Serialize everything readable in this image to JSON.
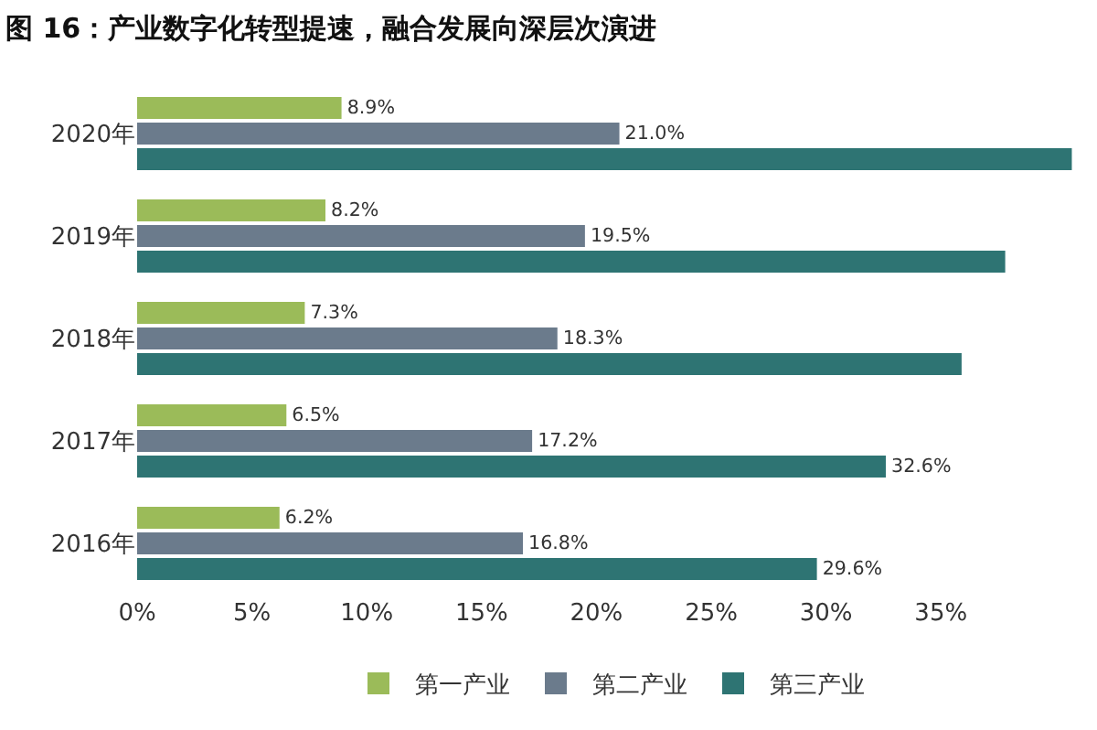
{
  "chart_data": {
    "type": "bar",
    "orientation": "horizontal",
    "title": "图 16：产业数字化转型提速，融合发展向深层次演进",
    "categories": [
      "2020年",
      "2019年",
      "2018年",
      "2017年",
      "2016年"
    ],
    "series": [
      {
        "name": "第一产业",
        "color": "#9bbb59",
        "values": [
          8.9,
          8.2,
          7.3,
          6.5,
          6.2
        ],
        "value_labels": [
          "8.9%",
          "8.2%",
          "7.3%",
          "6.5%",
          "6.2%"
        ]
      },
      {
        "name": "第二产业",
        "color": "#6b7b8c",
        "values": [
          21.0,
          19.5,
          18.3,
          17.2,
          16.8
        ],
        "value_labels": [
          "21.0%",
          "19.5%",
          "18.3%",
          "17.2%",
          "16.8%"
        ]
      },
      {
        "name": "第三产业",
        "color": "#2e7473",
        "values": [
          40.7,
          37.8,
          35.9,
          32.6,
          29.6
        ],
        "value_labels": [
          null,
          null,
          null,
          "32.6%",
          "29.6%"
        ]
      }
    ],
    "xlim": [
      0,
      41
    ],
    "xticks": [
      {
        "value": 0,
        "label": "0%"
      },
      {
        "value": 5,
        "label": "5%"
      },
      {
        "value": 10,
        "label": "10%"
      },
      {
        "value": 15,
        "label": "15%"
      },
      {
        "value": 20,
        "label": "20%"
      },
      {
        "value": 25,
        "label": "25%"
      },
      {
        "value": 30,
        "label": "30%"
      },
      {
        "value": 35,
        "label": "35%"
      }
    ],
    "legend": "bottom"
  }
}
